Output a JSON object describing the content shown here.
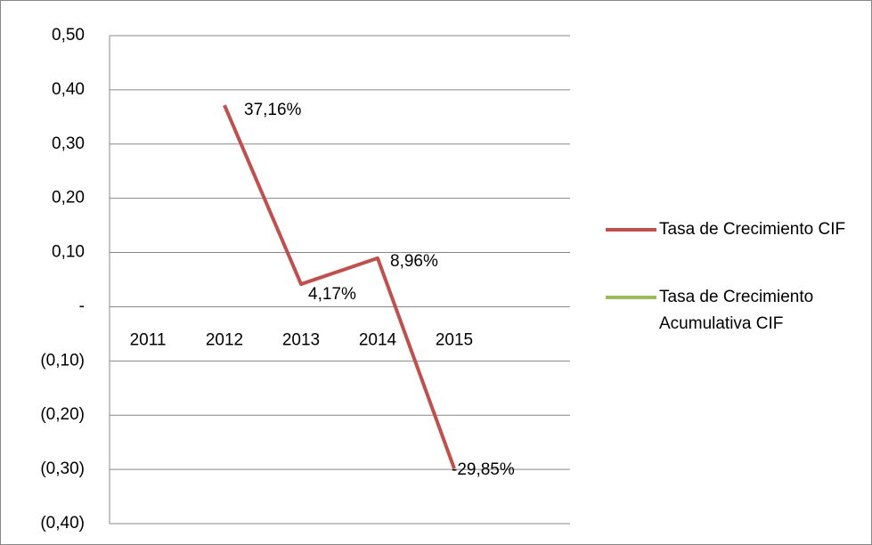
{
  "chart_data": {
    "type": "line",
    "categories": [
      "2011",
      "2012",
      "2013",
      "2014",
      "2015"
    ],
    "series": [
      {
        "name": "Tasa de Crecimiento CIF",
        "color": "#c0504d",
        "values": [
          null,
          0.3716,
          0.0417,
          0.0896,
          -0.2985
        ],
        "value_labels": [
          null,
          "37,16%",
          "4,17%",
          "8,96%",
          "-29,85%"
        ]
      },
      {
        "name": "Tasa de Crecimiento Acumulativa CIF",
        "color": "#9bbb59",
        "values": [
          null,
          null,
          null,
          null,
          null
        ]
      }
    ],
    "ylim": [
      -0.4,
      0.5
    ],
    "yticks": [
      {
        "value": -0.4,
        "label": "(0,40)"
      },
      {
        "value": -0.3,
        "label": "(0,30)"
      },
      {
        "value": -0.2,
        "label": "(0,20)"
      },
      {
        "value": -0.1,
        "label": "(0,10)"
      },
      {
        "value": 0,
        "label": "-"
      },
      {
        "value": 0.1,
        "label": "0,10"
      },
      {
        "value": 0.2,
        "label": "0,20"
      },
      {
        "value": 0.3,
        "label": "0,30"
      },
      {
        "value": 0.4,
        "label": "0,40"
      },
      {
        "value": 0.5,
        "label": "0,50"
      }
    ],
    "grid": true,
    "legend": "right"
  }
}
